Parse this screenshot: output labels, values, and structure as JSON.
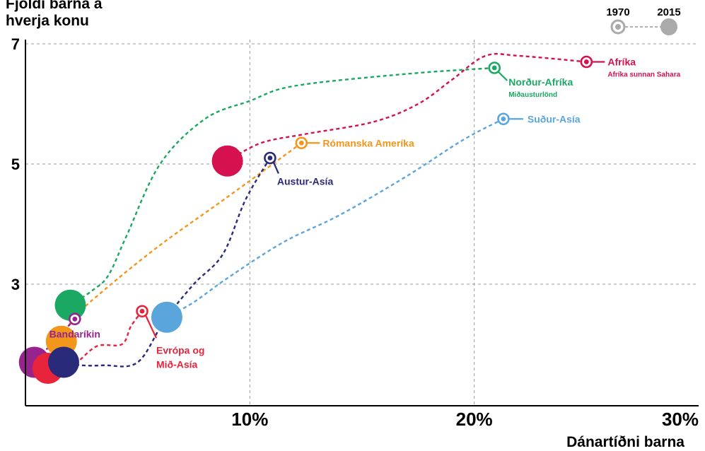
{
  "chart_data": {
    "type": "scatter",
    "ylabel_lines": [
      "Fjöldi barna á",
      "hverja konu"
    ],
    "xlabel": "Dánartíðni barna",
    "x_ticks": [
      {
        "value": 10,
        "label": "10%"
      },
      {
        "value": 20,
        "label": "20%"
      },
      {
        "value": 30,
        "label": "30%"
      }
    ],
    "y_ticks": [
      {
        "value": 3,
        "label": "3"
      },
      {
        "value": 5,
        "label": "5"
      },
      {
        "value": 7,
        "label": "7"
      }
    ],
    "xlim": [
      0,
      30
    ],
    "ylim": [
      1,
      7
    ],
    "grid": true,
    "legend": {
      "position": "top-right",
      "start_label": "1970",
      "end_label": "2015"
    },
    "series": [
      {
        "key": "nordur-afrika",
        "name": "Norður-Afríka",
        "subname": "Miðausturlönd",
        "color": "#1aa862",
        "start": {
          "x": 20.9,
          "y": 6.6
        },
        "end": {
          "x": 2.0,
          "y": 2.65
        },
        "path": [
          [
            20.9,
            6.6
          ],
          [
            17,
            6.5
          ],
          [
            12,
            6.3
          ],
          [
            10,
            6.05
          ],
          [
            8,
            5.75
          ],
          [
            6,
            5.0
          ],
          [
            4.5,
            3.8
          ],
          [
            3.7,
            3.15
          ],
          [
            3.0,
            2.9
          ],
          [
            2.0,
            2.65
          ]
        ]
      },
      {
        "key": "afrika",
        "name": "Afríka",
        "subname": "Afríka sunnan Sahara",
        "color": "#d5114f",
        "start": {
          "x": 25,
          "y": 6.7
        },
        "end": {
          "x": 9,
          "y": 5.05
        },
        "path": [
          [
            25,
            6.7
          ],
          [
            22,
            6.8
          ],
          [
            20.5,
            6.8
          ],
          [
            19,
            6.4
          ],
          [
            17.5,
            6.0
          ],
          [
            15.5,
            5.7
          ],
          [
            12.5,
            5.5
          ],
          [
            10.5,
            5.35
          ],
          [
            9,
            5.05
          ]
        ]
      },
      {
        "key": "sudur-asia",
        "name": "Suður-Asía",
        "color": "#5aa6dc",
        "start": {
          "x": 21.3,
          "y": 5.75
        },
        "end": {
          "x": 6.3,
          "y": 2.45
        },
        "path": [
          [
            21.3,
            5.75
          ],
          [
            19.5,
            5.4
          ],
          [
            17,
            4.8
          ],
          [
            14,
            4.15
          ],
          [
            11.5,
            3.7
          ],
          [
            9,
            3.1
          ],
          [
            7.5,
            2.7
          ],
          [
            6.3,
            2.45
          ]
        ]
      },
      {
        "key": "romanska-amerika",
        "name": "Rómanska Ameríka",
        "color": "#f2961c",
        "start": {
          "x": 12.3,
          "y": 5.35
        },
        "end": {
          "x": 1.6,
          "y": 2.05
        },
        "path": [
          [
            12.3,
            5.35
          ],
          [
            9,
            4.45
          ],
          [
            6,
            3.65
          ],
          [
            3.5,
            2.9
          ],
          [
            2.2,
            2.45
          ],
          [
            1.6,
            2.05
          ]
        ]
      },
      {
        "key": "austur-asia",
        "name": "Austur-Asía",
        "color": "#2a2a7a",
        "start": {
          "x": 10.9,
          "y": 5.1
        },
        "end": {
          "x": 1.7,
          "y": 1.7
        },
        "path": [
          [
            10.9,
            5.1
          ],
          [
            9.8,
            4.4
          ],
          [
            8.8,
            3.5
          ],
          [
            7.5,
            3.0
          ],
          [
            6.2,
            2.4
          ],
          [
            5.0,
            1.7
          ],
          [
            3.5,
            1.65
          ],
          [
            2.5,
            1.65
          ],
          [
            1.7,
            1.7
          ]
        ]
      },
      {
        "key": "evropa",
        "name": "Evrópa og Mið-Asía",
        "label_lines": [
          "Evrópa og",
          "Mið-Asía"
        ],
        "color": "#e8243c",
        "start": {
          "x": 5.2,
          "y": 2.55
        },
        "end": {
          "x": 1.0,
          "y": 1.6
        },
        "path": [
          [
            5.2,
            2.55
          ],
          [
            4.7,
            2.3
          ],
          [
            4.3,
            2.0
          ],
          [
            3.2,
            1.97
          ],
          [
            2.3,
            1.7
          ],
          [
            1.5,
            1.5
          ],
          [
            1.0,
            1.6
          ]
        ]
      },
      {
        "key": "bandarikin",
        "name": "Bandaríkin",
        "color": "#96248c",
        "start": {
          "x": 2.2,
          "y": 2.42
        },
        "end": {
          "x": 0.4,
          "y": 1.7
        },
        "path": [
          [
            2.2,
            2.42
          ],
          [
            0.4,
            1.7
          ]
        ]
      }
    ]
  }
}
